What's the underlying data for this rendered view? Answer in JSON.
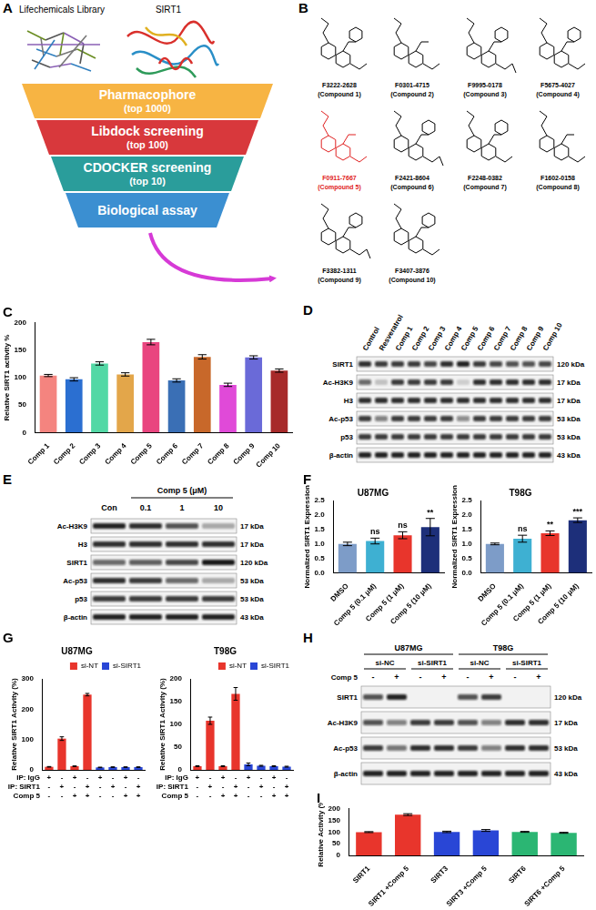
{
  "chart_data": [
    {
      "type": "bar",
      "panel": "C",
      "y_label": "Relative SIRT1 activity %",
      "categories": [
        "Comp 1",
        "Comp 2",
        "Comp 3",
        "Comp 4",
        "Comp 5",
        "Comp 6",
        "Comp 7",
        "Comp 8",
        "Comp 9",
        "Comp 10"
      ],
      "values": [
        104,
        97,
        126,
        106,
        165,
        95,
        138,
        87,
        137,
        113
      ],
      "errors": [
        2,
        3,
        3,
        3,
        5,
        3,
        4,
        3,
        3,
        3
      ],
      "colors": [
        "#f4847f",
        "#2b6fd1",
        "#52d8a5",
        "#e3a64a",
        "#e9457f",
        "#3a6fb5",
        "#c8682a",
        "#e04ad8",
        "#6a6ad8",
        "#a72a2a"
      ],
      "ylim": [
        0,
        200
      ],
      "yticks": [
        0,
        50,
        100,
        150,
        200
      ],
      "grid": false
    },
    {
      "type": "bar",
      "panel": "F",
      "title": "U87MG",
      "y_label": "Normalized SIRT1 Expression",
      "categories": [
        "DMSO",
        "Comp 5 (0.1 μM)",
        "Comp 5 (1 μM)",
        "Comp 5 (10 μM)"
      ],
      "values": [
        1.0,
        1.1,
        1.3,
        1.58
      ],
      "errors": [
        0.06,
        0.1,
        0.12,
        0.3
      ],
      "significance": [
        null,
        "ns",
        "ns",
        "**"
      ],
      "colors": [
        "#7d9cc8",
        "#3eb0d2",
        "#e8352c",
        "#1d2f7a"
      ],
      "ylim": [
        0,
        2.5
      ],
      "yticks": [
        {
          "value": 0,
          "label": "0.0"
        },
        0.5,
        {
          "value": 1,
          "label": "1.0"
        },
        1.5,
        {
          "value": 2,
          "label": "2.0"
        },
        2.5
      ],
      "grid": false
    },
    {
      "type": "bar",
      "title": "T98G",
      "y_label": "Normalized SIRT1 Expression",
      "categories": [
        "DMSO",
        "Comp 5 (0.1 μM)",
        "Comp 5 (1 μM)",
        "Comp 5 (10 μM)"
      ],
      "values": [
        1.0,
        1.18,
        1.37,
        1.82
      ],
      "errors": [
        0.03,
        0.12,
        0.08,
        0.08
      ],
      "significance": [
        null,
        "ns",
        "**",
        "***"
      ],
      "colors": [
        "#7d9cc8",
        "#3eb0d2",
        "#e8352c",
        "#1d2f7a"
      ],
      "ylim": [
        0,
        2.5
      ],
      "yticks": [
        {
          "value": 0,
          "label": "0.0"
        },
        0.5,
        {
          "value": 1,
          "label": "1.0"
        },
        1.5,
        {
          "value": 2,
          "label": "2.0"
        },
        2.5
      ],
      "grid": false
    },
    {
      "type": "bar",
      "panel": "G",
      "title": "U87MG",
      "y_label": "Relative SIRT1 Activity (%)",
      "categories": [
        null,
        null,
        null,
        null,
        null,
        null,
        null,
        null
      ],
      "series": [
        {
          "name": "si-NT",
          "color": "#e8352c",
          "values": [
            10,
            103,
            12,
            248,
            null,
            null,
            null,
            null
          ],
          "errors": [
            1,
            6,
            1,
            4,
            null,
            null,
            null,
            null
          ]
        },
        {
          "name": "si-SIRT1",
          "color": "#2946d6",
          "values": [
            null,
            null,
            null,
            null,
            8,
            9,
            9,
            9
          ],
          "errors": [
            null,
            null,
            null,
            null,
            1,
            1,
            1,
            1
          ]
        }
      ],
      "table": {
        "rows": [
          {
            "label": "IP: IgG",
            "values": [
              "+",
              "-",
              "+",
              "-",
              "+",
              "-",
              "+",
              "-"
            ]
          },
          {
            "label": "IP: SIRT1",
            "values": [
              "-",
              "+",
              "-",
              "+",
              "-",
              "+",
              "-",
              "+"
            ]
          },
          {
            "label": "Comp 5",
            "values": [
              "-",
              "-",
              "+",
              "+",
              "-",
              "-",
              "+",
              "+"
            ]
          }
        ]
      },
      "legend": "upper right",
      "tick_labels": "y",
      "ylim": [
        0,
        300
      ],
      "yticks": [
        0,
        100,
        200,
        300
      ],
      "grid": false
    },
    {
      "type": "bar",
      "title": "T98G",
      "y_label": "Relative SIRT1 Activity (%)",
      "categories": [
        null,
        null,
        null,
        null,
        null,
        null,
        null,
        null
      ],
      "series": [
        {
          "name": "si-NT",
          "color": "#e8352c",
          "values": [
            8,
            108,
            8,
            167,
            null,
            null,
            null,
            null
          ],
          "errors": [
            1,
            8,
            1,
            14,
            null,
            null,
            null,
            null
          ]
        },
        {
          "name": "si-SIRT1",
          "color": "#2946d6",
          "values": [
            null,
            null,
            null,
            null,
            12,
            9,
            8,
            7
          ],
          "errors": [
            null,
            null,
            null,
            null,
            3,
            1,
            1,
            1
          ]
        }
      ],
      "table": {
        "rows": [
          {
            "label": "IP: IgG",
            "values": [
              "+",
              "-",
              "+",
              "-",
              "+",
              "-",
              "+",
              "-"
            ]
          },
          {
            "label": "IP: SIRT1",
            "values": [
              "-",
              "+",
              "-",
              "+",
              "-",
              "+",
              "-",
              "+"
            ]
          },
          {
            "label": "Comp 5",
            "values": [
              "-",
              "-",
              "+",
              "+",
              "-",
              "-",
              "+",
              "+"
            ]
          }
        ]
      },
      "legend": "upper right",
      "tick_labels": "y",
      "ylim": [
        0,
        200
      ],
      "yticks": [
        0,
        50,
        100,
        150,
        200
      ],
      "grid": false
    },
    {
      "type": "bar",
      "panel": "I",
      "y_label": "Relative Activity (%)",
      "categories": [
        "SIRT1",
        "SIRT1 +Comp 5",
        "SIRT3",
        "SIRT3 +Comp 5",
        "SIRT6",
        "SIRT6 +Comp 5"
      ],
      "values": [
        100,
        175,
        101,
        107,
        101,
        97
      ],
      "errors": [
        2,
        4,
        3,
        4,
        2,
        2
      ],
      "colors": [
        "#e8352c",
        "#e8352c",
        "#2946d6",
        "#2946d6",
        "#2bb673",
        "#2bb673"
      ],
      "ylim": [
        0,
        200
      ],
      "yticks": [
        0,
        50,
        100,
        150,
        200
      ],
      "grid": false
    }
  ],
  "panel_A": {
    "letter": "A",
    "library_label": "Lifechemicals Library",
    "target_label": "SIRT1",
    "steps": [
      {
        "label": "Pharmacophore",
        "note": "(top 1000)",
        "color": "#f7b443"
      },
      {
        "label": "Libdock screening",
        "note": "(top 100)",
        "color": "#d8383c"
      },
      {
        "label": "CDOCKER screening",
        "note": "(top 10)",
        "color": "#2a9d9b"
      },
      {
        "label": "Biological assay",
        "color": "#3b8fd1"
      }
    ]
  },
  "panel_B": {
    "letter": "B",
    "compounds": [
      {
        "id": "F3222-2628",
        "name": "(Compound 1)",
        "color": "#000000"
      },
      {
        "id": "F0301-4715",
        "name": "(Compound 2)",
        "color": "#000000"
      },
      {
        "id": "F9995-0178",
        "name": "(Compound 3)",
        "color": "#000000"
      },
      {
        "id": "F5675-4027",
        "name": "(Compound 4)",
        "color": "#000000"
      },
      {
        "id": "F0911-7667",
        "name": "(Compound 5)",
        "color": "#e02020"
      },
      {
        "id": "F2421-8604",
        "name": "(Compound 6)",
        "color": "#000000"
      },
      {
        "id": "F2248-0382",
        "name": "(Compound 7)",
        "color": "#000000"
      },
      {
        "id": "F1602-0158",
        "name": "(Compound 8)",
        "color": "#000000"
      },
      {
        "id": "F3382-1311",
        "name": "(Compound 9)",
        "color": "#000000"
      },
      {
        "id": "F3407-3876",
        "name": "(Compound 10)",
        "color": "#000000"
      }
    ]
  },
  "panel_D": {
    "letter": "D",
    "lanes": [
      "Control",
      "Resveratrol",
      "Comp 1",
      "Comp 2",
      "Comp 3",
      "Comp 4",
      "Comp 5",
      "Comp 6",
      "Comp 7",
      "Comp 8",
      "Comp 9",
      "Comp 10"
    ],
    "rows": [
      {
        "label": "SIRT1",
        "size": "120 kDa",
        "intensities": [
          0.85,
          0.8,
          0.8,
          0.8,
          0.75,
          0.85,
          0.9,
          0.8,
          0.75,
          0.7,
          0.7,
          0.75
        ]
      },
      {
        "label": "Ac-H3K9",
        "size": "17 kDa",
        "intensities": [
          0.6,
          0.2,
          0.8,
          0.8,
          0.8,
          0.8,
          0.15,
          0.85,
          0.85,
          0.85,
          0.85,
          0.85
        ]
      },
      {
        "label": "H3",
        "size": "17 kDa",
        "intensities": [
          0.85,
          0.85,
          0.85,
          0.85,
          0.85,
          0.85,
          0.85,
          0.85,
          0.85,
          0.85,
          0.85,
          0.85
        ]
      },
      {
        "label": "Ac-p53",
        "size": "53 kDa",
        "intensities": [
          0.8,
          0.5,
          0.8,
          0.8,
          0.8,
          0.8,
          0.45,
          0.8,
          0.8,
          0.8,
          0.8,
          0.8
        ]
      },
      {
        "label": "p53",
        "size": "53 kDa",
        "intensities": [
          0.8,
          0.8,
          0.8,
          0.8,
          0.8,
          0.8,
          0.8,
          0.8,
          0.8,
          0.8,
          0.8,
          0.8
        ]
      },
      {
        "label": "β-actin",
        "size": "43 kDa",
        "intensities": [
          0.9,
          0.9,
          0.9,
          0.9,
          0.9,
          0.9,
          0.9,
          0.9,
          0.9,
          0.9,
          0.9,
          0.9
        ]
      }
    ]
  },
  "panel_E": {
    "letter": "E",
    "header": "Comp 5 (μM)",
    "lanes": [
      "Con",
      "0.1",
      "1",
      "10"
    ],
    "rows": [
      {
        "label": "Ac-H3K9",
        "size": "17 kDa",
        "intensities": [
          0.9,
          0.85,
          0.7,
          0.3
        ]
      },
      {
        "label": "H3",
        "size": "17 kDa",
        "intensities": [
          0.85,
          0.85,
          0.85,
          0.85
        ]
      },
      {
        "label": "SIRT1",
        "size": "120 kDa",
        "intensities": [
          0.6,
          0.65,
          0.75,
          0.95
        ]
      },
      {
        "label": "Ac-p53",
        "size": "53 kDa",
        "intensities": [
          0.85,
          0.8,
          0.6,
          0.3
        ]
      },
      {
        "label": "p53",
        "size": "53 kDa",
        "intensities": [
          0.8,
          0.8,
          0.8,
          0.8
        ]
      },
      {
        "label": "β-actin",
        "size": "43 kDa",
        "intensities": [
          0.9,
          0.9,
          0.9,
          0.9
        ]
      }
    ]
  },
  "panel_H": {
    "letter": "H",
    "groups": [
      {
        "label": "U87MG",
        "conditions": [
          "si-NC",
          "si-SIRT1"
        ]
      },
      {
        "label": "T98G",
        "conditions": [
          "si-NC",
          "si-SIRT1"
        ]
      }
    ],
    "treatment": {
      "label": "Comp 5",
      "signs": [
        "-",
        "+",
        "-",
        "+",
        "-",
        "+",
        "-",
        "+"
      ]
    },
    "rows": [
      {
        "label": "SIRT1",
        "size": "120 kDa",
        "intensities": [
          0.7,
          0.9,
          0,
          0,
          0.7,
          0.8,
          0,
          0
        ]
      },
      {
        "label": "Ac-H3K9",
        "size": "17 kDa",
        "intensities": [
          0.7,
          0.5,
          0.8,
          0.8,
          0.7,
          0.5,
          0.85,
          0.85
        ]
      },
      {
        "label": "Ac-p53",
        "size": "53 kDa",
        "intensities": [
          0.8,
          0.55,
          0.85,
          0.85,
          0.8,
          0.5,
          0.85,
          0.85
        ]
      },
      {
        "label": "β-actin",
        "size": "43 kDa",
        "intensities": [
          0.9,
          0.9,
          0.9,
          0.9,
          0.9,
          0.9,
          0.9,
          0.9
        ]
      }
    ]
  }
}
